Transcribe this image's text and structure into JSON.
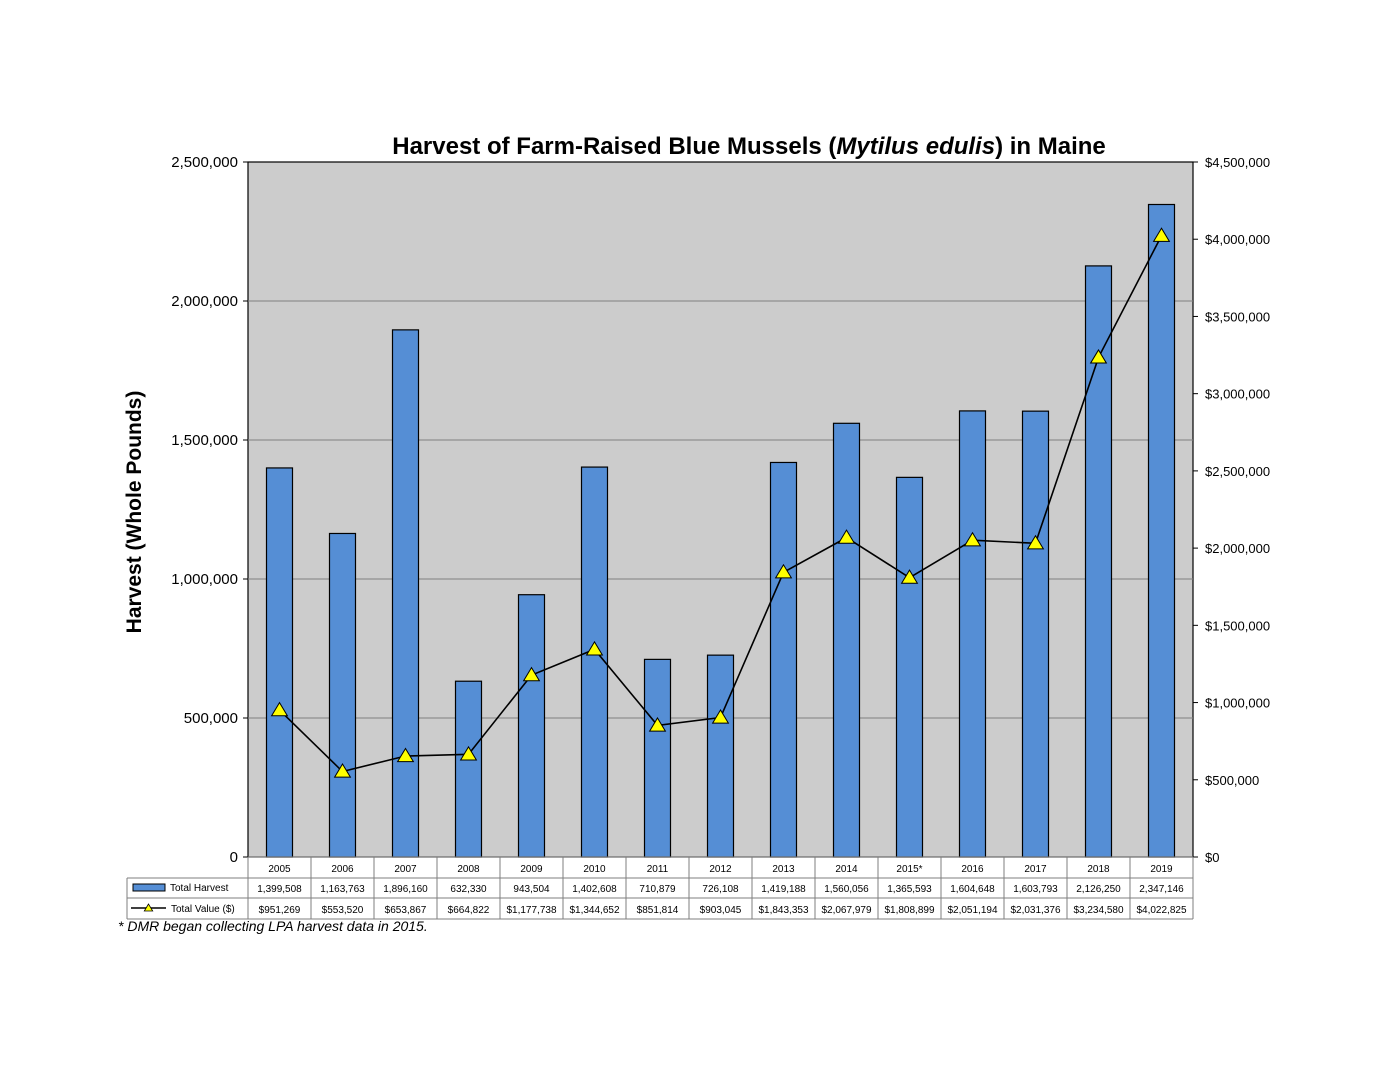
{
  "chart_data": {
    "type": "bar",
    "title_parts": [
      "Harvest of Farm-Raised Blue Mussels (",
      "Mytilus edulis",
      ") in Maine"
    ],
    "ylabel": "Harvest (Whole Pounds)",
    "ylim": [
      0,
      2500000
    ],
    "y2lim": [
      0,
      4500000
    ],
    "grid": true,
    "categories": [
      "2005",
      "2006",
      "2007",
      "2008",
      "2009",
      "2010",
      "2011",
      "2012",
      "2013",
      "2014",
      "2015*",
      "2016",
      "2017",
      "2018",
      "2019"
    ],
    "yticks": [
      "0",
      "500,000",
      "1,000,000",
      "1,500,000",
      "2,000,000",
      "2,500,000"
    ],
    "y2ticks": [
      "$0",
      "$500,000",
      "$1,000,000",
      "$1,500,000",
      "$2,000,000",
      "$2,500,000",
      "$3,000,000",
      "$3,500,000",
      "$4,000,000",
      "$4,500,000"
    ],
    "series": [
      {
        "name": "Total Harvest",
        "type": "bar",
        "axis": "left",
        "color": "#558ed5",
        "values": [
          1399508,
          1163763,
          1896160,
          632330,
          943504,
          1402608,
          710879,
          726108,
          1419188,
          1560056,
          1365593,
          1604648,
          1603793,
          2126250,
          2347146
        ],
        "labels": [
          "1,399,508",
          "1,163,763",
          "1,896,160",
          "632,330",
          "943,504",
          "1,402,608",
          "710,879",
          "726,108",
          "1,419,188",
          "1,560,056",
          "1,365,593",
          "1,604,648",
          "1,603,793",
          "2,126,250",
          "2,347,146"
        ]
      },
      {
        "name": "Total Value ($)",
        "type": "line",
        "axis": "right",
        "color": "#000000",
        "marker_color": "#ffff00",
        "values": [
          951269,
          553520,
          653867,
          664822,
          1177738,
          1344652,
          851814,
          903045,
          1843353,
          2067979,
          1808899,
          2051194,
          2031376,
          3234580,
          4022825
        ],
        "labels": [
          "$951,269",
          "$553,520",
          "$653,867",
          "$664,822",
          "$1,177,738",
          "$1,344,652",
          "$851,814",
          "$903,045",
          "$1,843,353",
          "$2,067,979",
          "$1,808,899",
          "$2,051,194",
          "$2,031,376",
          "$3,234,580",
          "$4,022,825"
        ]
      }
    ],
    "footnote": "* DMR began collecting LPA harvest data in 2015."
  }
}
